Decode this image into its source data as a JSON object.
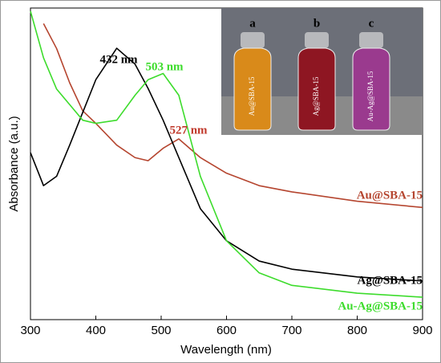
{
  "chart_data": {
    "type": "line",
    "x_label": "Wavelength (nm)",
    "y_label": "Absorbance (a.u.)",
    "x": [
      300,
      320,
      340,
      360,
      380,
      400,
      432,
      460,
      480,
      503,
      527,
      560,
      600,
      650,
      700,
      800,
      900
    ],
    "series": [
      {
        "name": "Au@SBA-15",
        "color": "#b5452f",
        "values": [
          null,
          0.95,
          0.87,
          0.76,
          0.67,
          0.63,
          0.56,
          0.52,
          0.51,
          0.55,
          0.58,
          0.52,
          0.47,
          0.43,
          0.41,
          0.38,
          0.36
        ]
      },
      {
        "name": "Ag@SBA-15",
        "color": "#000000",
        "values": [
          0.536,
          0.43,
          0.46,
          0.56,
          0.665,
          0.77,
          0.871,
          0.82,
          0.742,
          0.64,
          0.52,
          0.356,
          0.253,
          0.188,
          0.162,
          0.137,
          0.124
        ]
      },
      {
        "name": "Au-Ag@SBA-15",
        "color": "#3ddc2c",
        "values": [
          0.99,
          0.84,
          0.74,
          0.69,
          0.64,
          0.63,
          0.64,
          0.72,
          0.77,
          0.79,
          0.72,
          0.46,
          0.253,
          0.15,
          0.11,
          0.085,
          0.072
        ]
      }
    ],
    "annotations": [
      {
        "text": "432 nm",
        "color": "#000000"
      },
      {
        "text": "503 nm",
        "color": "#3ddc2c"
      },
      {
        "text": "527 nm",
        "color": "#c0392b"
      }
    ],
    "inset": {
      "letters": [
        "a",
        "b",
        "c"
      ],
      "vial_labels": [
        "Au@SBA-15",
        "Ag@SBA-15",
        "Au-Ag@SBA-15"
      ]
    },
    "xlim": [
      300,
      900
    ],
    "xticks": [
      300,
      400,
      500,
      600,
      700,
      800,
      900
    ],
    "ylim": [
      0,
      1
    ]
  }
}
